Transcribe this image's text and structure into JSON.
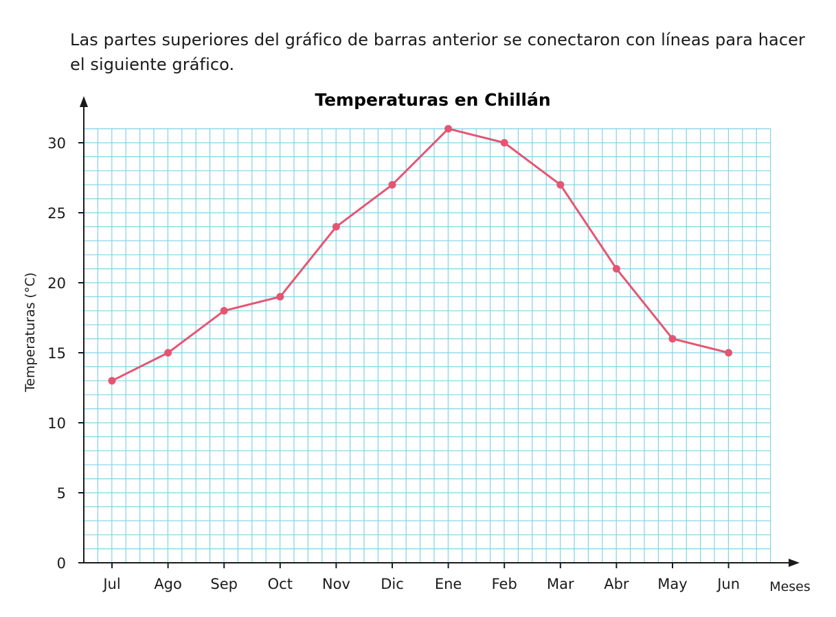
{
  "intro": {
    "text": "Las partes superiores del gráfico de barras anterior se conectaron con líneas para hacer el siguiente gráfico."
  },
  "colors": {
    "grid": "#7fd3e6",
    "line": "#e55572",
    "axis": "#1a1a1a"
  },
  "chart_data": {
    "type": "line",
    "title": "Temperaturas en Chillán",
    "xlabel": "Meses",
    "ylabel": "Temperaturas (°C)",
    "categories": [
      "Jul",
      "Ago",
      "Sep",
      "Oct",
      "Nov",
      "Dic",
      "Ene",
      "Feb",
      "Mar",
      "Abr",
      "May",
      "Jun"
    ],
    "series": [
      {
        "values": [
          13,
          15,
          18,
          19,
          24,
          27,
          31,
          30,
          27,
          21,
          16,
          15
        ]
      }
    ],
    "yticks": [
      0,
      5,
      10,
      15,
      20,
      25,
      30
    ],
    "ylim": [
      0,
      31
    ],
    "grid": true,
    "grid_minor_step": 1,
    "legend": "none"
  }
}
